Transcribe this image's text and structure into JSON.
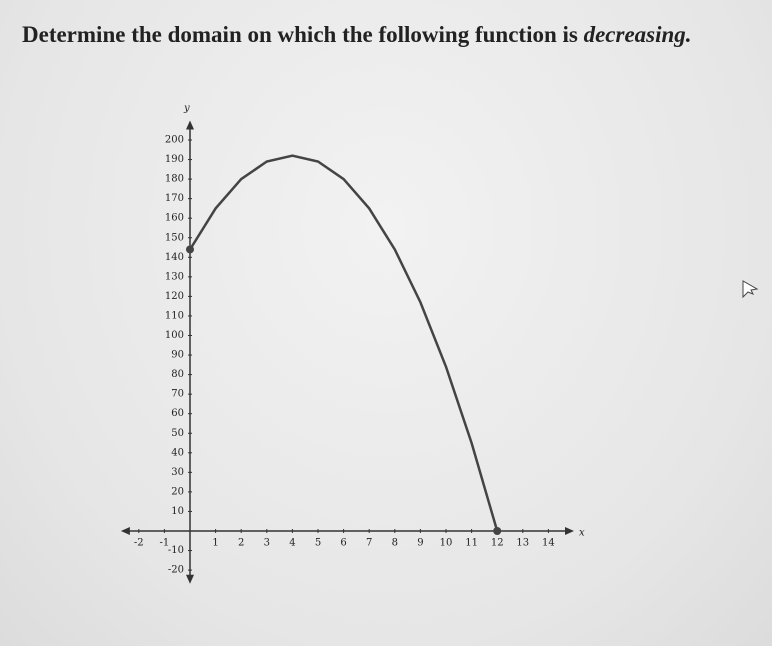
{
  "chart_data": {
    "type": "line",
    "title": "Determine the domain on which the following function is",
    "title_emphasis": "decreasing.",
    "x_label": "x",
    "y_label": "y",
    "x": [
      0,
      1,
      2,
      3,
      4,
      5,
      6,
      7,
      8,
      9,
      10,
      11,
      12
    ],
    "values": [
      144,
      165,
      180,
      189,
      192,
      189,
      180,
      165,
      144,
      117,
      84,
      45,
      0
    ],
    "color": "#444444",
    "xlim": [
      -2.7,
      15
    ],
    "ylim": [
      -27,
      210
    ],
    "xticks": [
      -2,
      -1,
      1,
      2,
      3,
      4,
      5,
      6,
      7,
      8,
      9,
      10,
      11,
      12,
      13,
      14
    ],
    "yticks": [
      -20,
      -10,
      10,
      20,
      30,
      40,
      50,
      60,
      70,
      80,
      90,
      100,
      110,
      120,
      130,
      140,
      150,
      160,
      170,
      180,
      190,
      200
    ],
    "endpoints": "closed"
  }
}
